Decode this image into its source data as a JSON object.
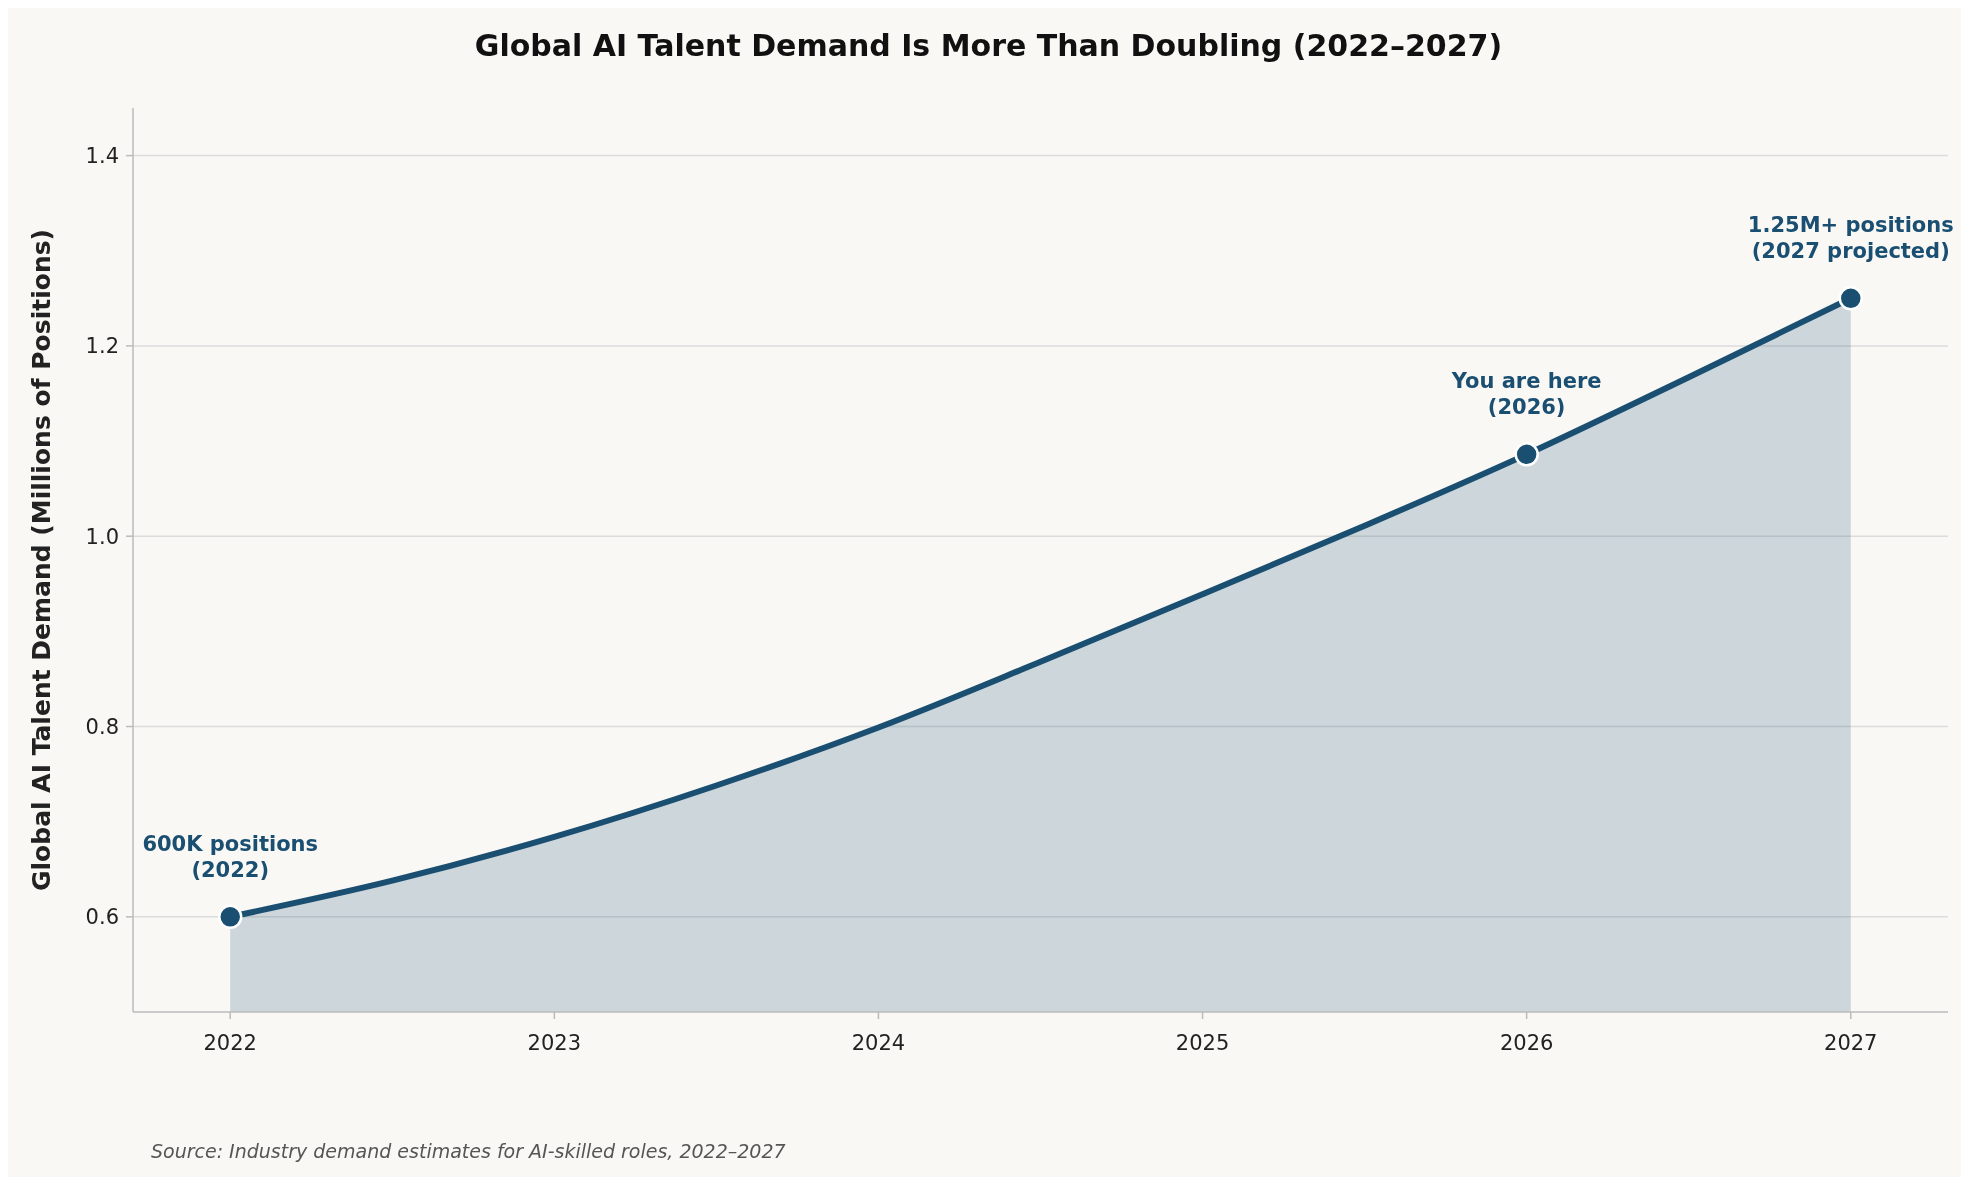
{
  "chart_data": {
    "type": "area",
    "title": "Global AI Talent Demand Is More Than Doubling (2022–2027)",
    "ylabel": "Global AI Talent Demand (Millions of Positions)",
    "xlim": [
      2021.7,
      2027.3
    ],
    "xticks": [
      2022,
      2023,
      2024,
      2025,
      2026,
      2027
    ],
    "ylim": [
      0.5,
      1.45
    ],
    "yticks": [
      {
        "value": 0.6,
        "label": "0.6"
      },
      {
        "value": 0.8,
        "label": "0.8"
      },
      {
        "value": 1,
        "label": "1.0"
      },
      {
        "value": 1.2,
        "label": "1.2"
      },
      {
        "value": 1.4,
        "label": "1.4"
      }
    ],
    "grid": "y",
    "series": [
      {
        "color": "#1a4f72",
        "x": [
          2022,
          2022.5,
          2023,
          2023.5,
          2024,
          2024.5,
          2025,
          2025.5,
          2026,
          2026.5,
          2027
        ],
        "values": [
          0.6,
          0.638,
          0.684,
          0.738,
          0.799,
          0.868,
          0.939,
          1.011,
          1.086,
          1.167,
          1.25
        ]
      },
      {
        "type": "scatter",
        "color": "#1a4f72",
        "marker": "circle",
        "x": [
          2022,
          2026,
          2027
        ],
        "values": [
          0.6,
          1.086,
          1.25
        ]
      }
    ],
    "annotations": [
      {
        "text": "600K positions\n(2022)",
        "x": 2022,
        "y": 0.6
      },
      {
        "text": "You are here\n(2026)",
        "x": 2026,
        "y": 1.086
      },
      {
        "text": "1.25M+ positions\n(2027 projected)",
        "x": 2027,
        "y": 1.25
      },
      "Source: Industry demand estimates for AI-skilled roles, 2022–2027"
    ]
  }
}
